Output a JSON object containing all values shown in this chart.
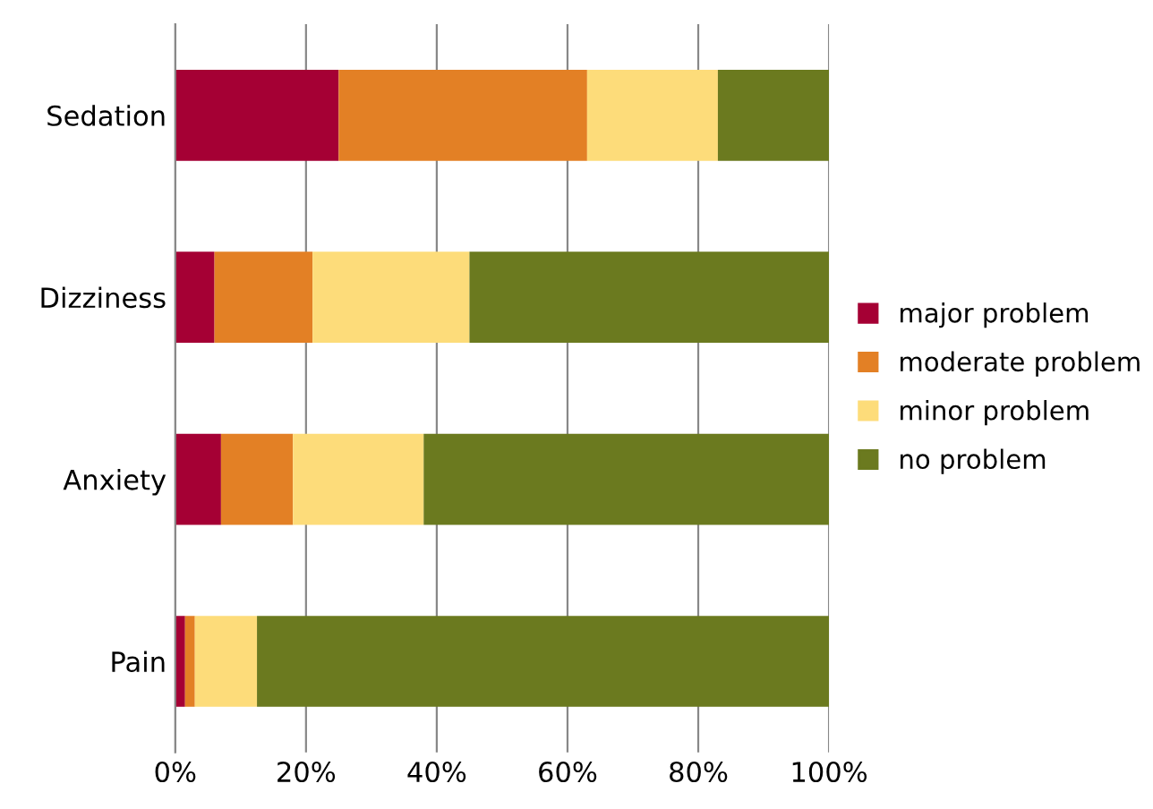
{
  "chart_data": {
    "type": "bar",
    "orientation": "horizontal",
    "stacked": true,
    "categories": [
      "Sedation",
      "Dizziness",
      "Anxiety",
      "Pain"
    ],
    "series": [
      {
        "name": "major problem",
        "color": "#a50034",
        "values": [
          25,
          6,
          7,
          1.5
        ]
      },
      {
        "name": "moderate problem",
        "color": "#e38025",
        "values": [
          38,
          15,
          11,
          1.5
        ]
      },
      {
        "name": "minor problem",
        "color": "#fddc7a",
        "values": [
          20,
          24,
          20,
          9.5
        ]
      },
      {
        "name": "no problem",
        "color": "#6b7a1f",
        "values": [
          17,
          55,
          62,
          87.5
        ]
      }
    ],
    "xlim": [
      0,
      100
    ],
    "xticks": [
      {
        "value": 0,
        "label": "0%"
      },
      {
        "value": 20,
        "label": "20%"
      },
      {
        "value": 40,
        "label": "40%"
      },
      {
        "value": 60,
        "label": "60%"
      },
      {
        "value": 80,
        "label": "80%"
      },
      {
        "value": 100,
        "label": "100%"
      }
    ],
    "grid": "x",
    "legend": "right"
  }
}
